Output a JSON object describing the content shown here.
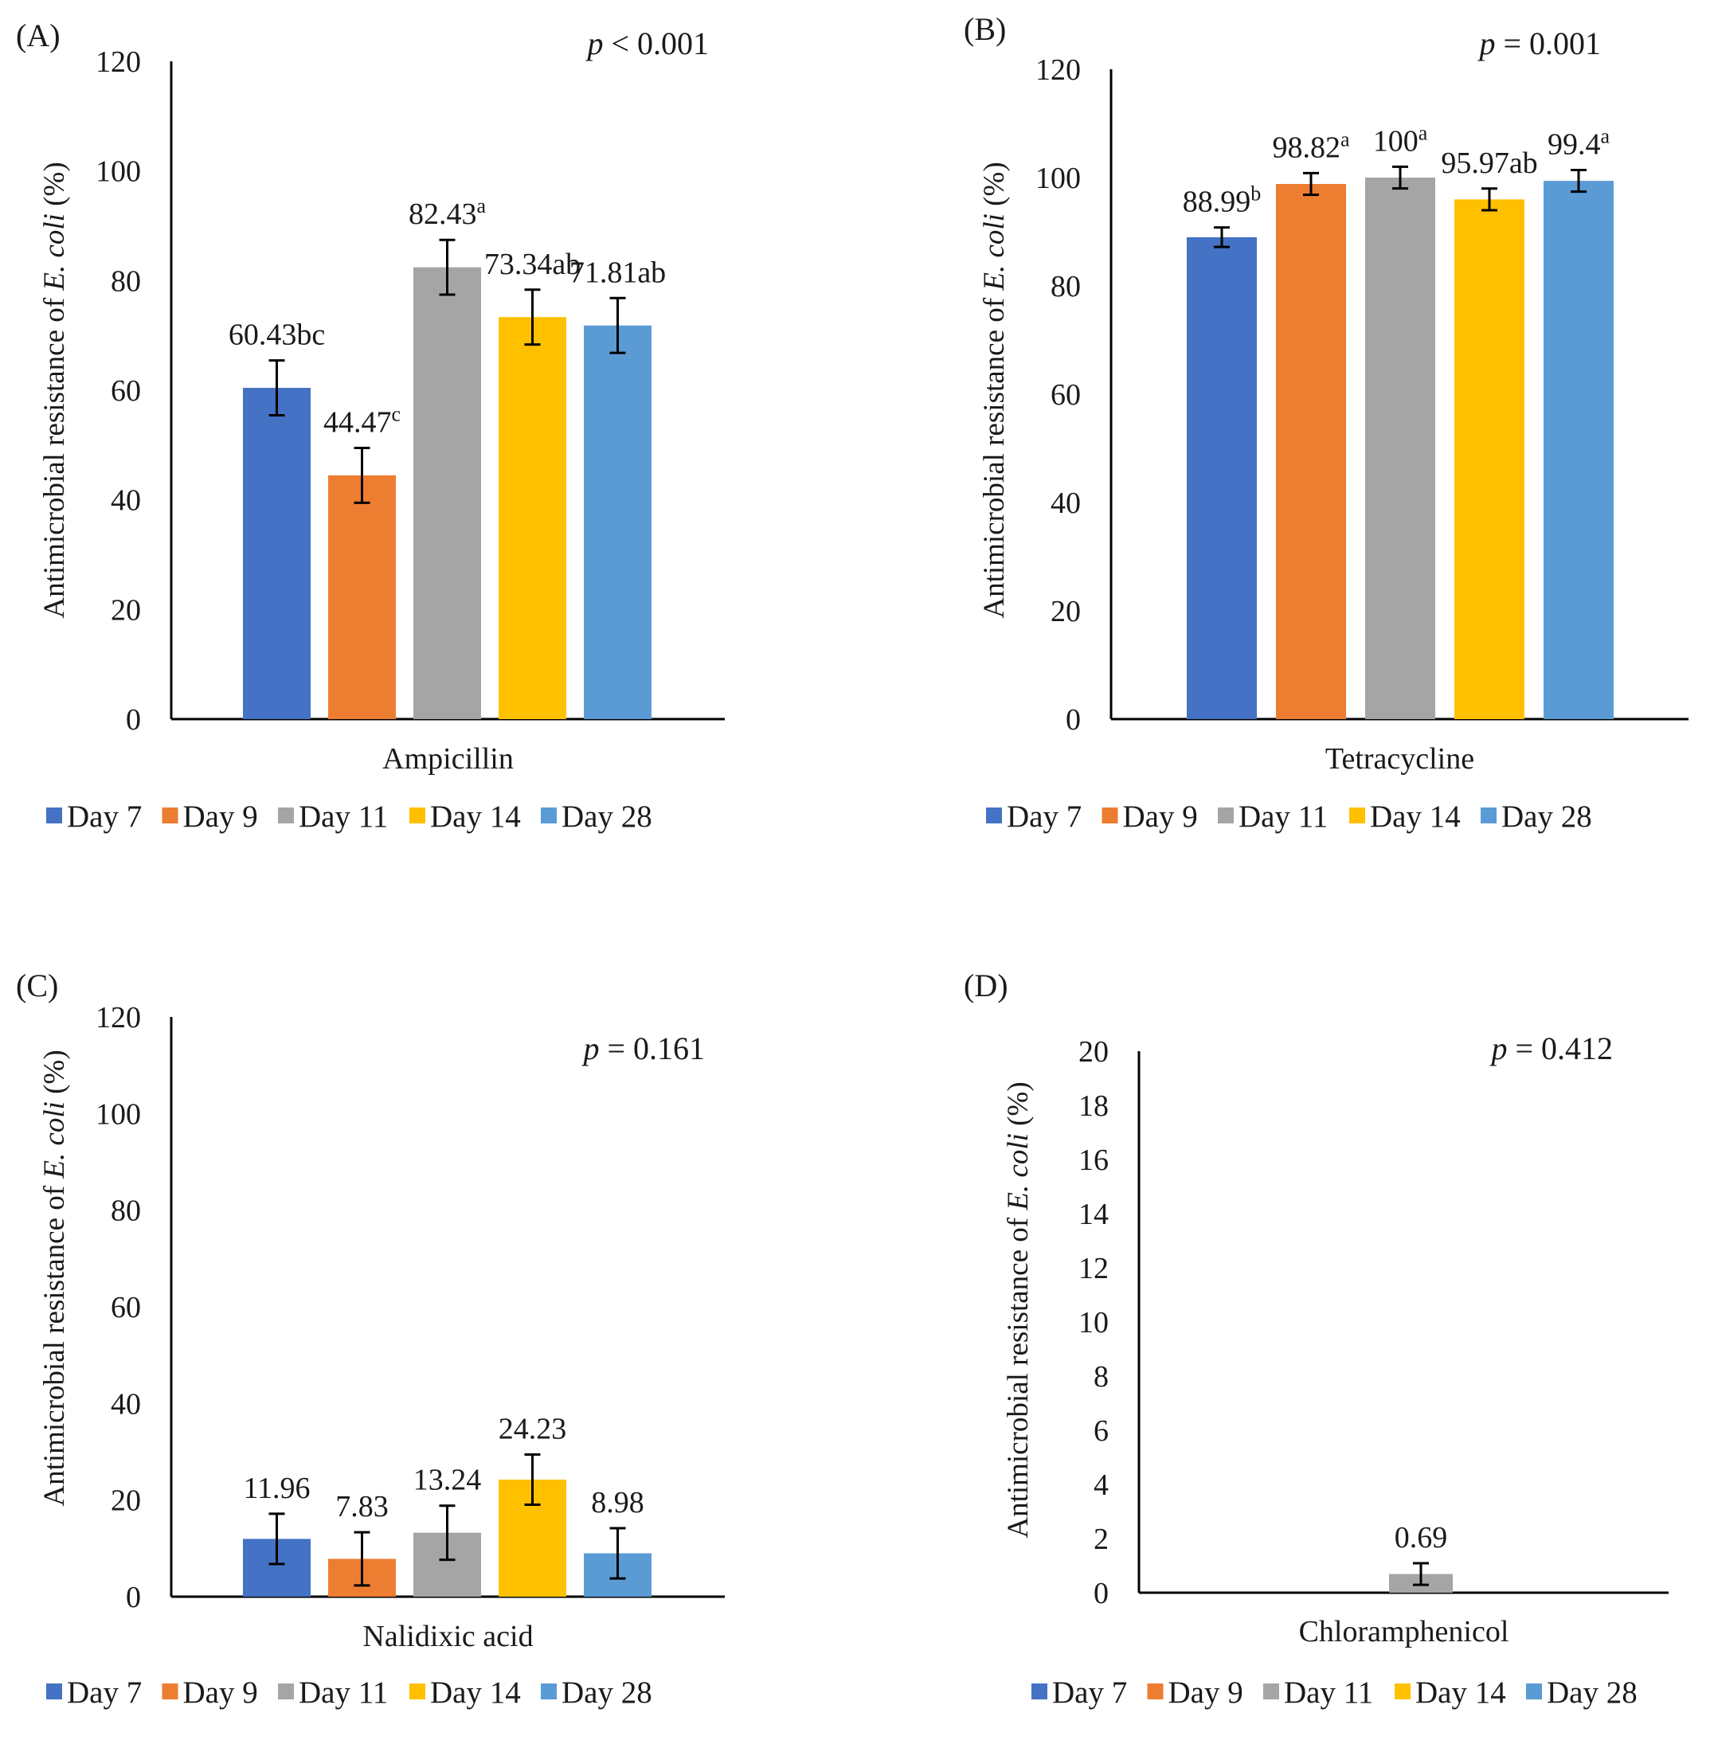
{
  "chart_data": [
    {
      "panel_label": "(A)",
      "type": "bar",
      "p_value_var": "p",
      "p_value_text": " < 0.001",
      "category": "Ampicillin",
      "ylabel_prefix": "Antimicrobial resistance of ",
      "ylabel_italic": "E. coli",
      "ylabel_suffix": " (%)",
      "ylim": [
        0,
        120
      ],
      "ystep": 20,
      "series": [
        {
          "name": "Day 7",
          "color": "#4472C4",
          "value": 60.43,
          "error": 5,
          "label": "60.43",
          "letter": "bc",
          "letter_sup": false
        },
        {
          "name": "Day 9",
          "color": "#ED7D31",
          "value": 44.47,
          "error": 5,
          "label": "44.47",
          "letter": "c",
          "letter_sup": true
        },
        {
          "name": "Day 11",
          "color": "#A5A5A5",
          "value": 82.43,
          "error": 5,
          "label": "82.43",
          "letter": "a",
          "letter_sup": true
        },
        {
          "name": "Day 14",
          "color": "#FFC000",
          "value": 73.34,
          "error": 5,
          "label": "73.34",
          "letter": "ab",
          "letter_sup": false
        },
        {
          "name": "Day 28",
          "color": "#5B9BD5",
          "value": 71.81,
          "error": 5,
          "label": "71.81",
          "letter": "ab",
          "letter_sup": false
        }
      ]
    },
    {
      "panel_label": "(B)",
      "type": "bar",
      "p_value_var": "p",
      "p_value_text": " = 0.001",
      "category": "Tetracycline",
      "ylabel_prefix": "Antimicrobial resistance of ",
      "ylabel_italic": "E. coli",
      "ylabel_suffix": " (%)",
      "ylim": [
        0,
        120
      ],
      "ystep": 20,
      "series": [
        {
          "name": "Day 7",
          "color": "#4472C4",
          "value": 88.99,
          "error": 1.8,
          "label": "88.99",
          "letter": "b",
          "letter_sup": true
        },
        {
          "name": "Day 9",
          "color": "#ED7D31",
          "value": 98.82,
          "error": 2,
          "label": "98.82",
          "letter": "a",
          "letter_sup": true
        },
        {
          "name": "Day 11",
          "color": "#A5A5A5",
          "value": 100,
          "error": 2,
          "label": "100",
          "letter": "a",
          "letter_sup": true
        },
        {
          "name": "Day 14",
          "color": "#FFC000",
          "value": 95.97,
          "error": 2,
          "label": "95.97",
          "letter": "ab",
          "letter_sup": false
        },
        {
          "name": "Day 28",
          "color": "#5B9BD5",
          "value": 99.4,
          "error": 2,
          "label": "99.4",
          "letter": "a",
          "letter_sup": true
        }
      ]
    },
    {
      "panel_label": "(C)",
      "type": "bar",
      "p_value_var": "p",
      "p_value_text": " = 0.161",
      "category": "Nalidixic acid",
      "ylabel_prefix": "Antimicrobial resistance of ",
      "ylabel_italic": "E. coli",
      "ylabel_suffix": " (%)",
      "ylim": [
        0,
        120
      ],
      "ystep": 20,
      "series": [
        {
          "name": "Day 7",
          "color": "#4472C4",
          "value": 11.96,
          "error": 5.2,
          "label": "11.96",
          "letter": "",
          "letter_sup": false
        },
        {
          "name": "Day 9",
          "color": "#ED7D31",
          "value": 7.83,
          "error": 5.5,
          "label": "7.83",
          "letter": "",
          "letter_sup": false
        },
        {
          "name": "Day 11",
          "color": "#A5A5A5",
          "value": 13.24,
          "error": 5.6,
          "label": "13.24",
          "letter": "",
          "letter_sup": false
        },
        {
          "name": "Day 14",
          "color": "#FFC000",
          "value": 24.23,
          "error": 5.2,
          "label": "24.23",
          "letter": "",
          "letter_sup": false
        },
        {
          "name": "Day 28",
          "color": "#5B9BD5",
          "value": 8.98,
          "error": 5.2,
          "label": "8.98",
          "letter": "",
          "letter_sup": false
        }
      ]
    },
    {
      "panel_label": "(D)",
      "type": "bar",
      "p_value_var": "p",
      "p_value_text": " = 0.412",
      "category": "Chloramphenicol",
      "ylabel_prefix": "Antimicrobial resistance of ",
      "ylabel_italic": "E. coli",
      "ylabel_suffix": " (%)",
      "ylim": [
        0,
        20
      ],
      "ystep": 2,
      "series": [
        {
          "name": "Day 7",
          "color": "#4472C4",
          "value": 0,
          "error": 0,
          "label": "",
          "letter": "",
          "letter_sup": false
        },
        {
          "name": "Day 9",
          "color": "#ED7D31",
          "value": 0,
          "error": 0,
          "label": "",
          "letter": "",
          "letter_sup": false
        },
        {
          "name": "Day 11",
          "color": "#A5A5A5",
          "value": 0.69,
          "error": 0.4,
          "label": "0.69",
          "letter": "",
          "letter_sup": false
        },
        {
          "name": "Day 14",
          "color": "#FFC000",
          "value": 0,
          "error": 0,
          "label": "",
          "letter": "",
          "letter_sup": false
        },
        {
          "name": "Day 28",
          "color": "#5B9BD5",
          "value": 0,
          "error": 0,
          "label": "",
          "letter": "",
          "letter_sup": false
        }
      ]
    }
  ]
}
